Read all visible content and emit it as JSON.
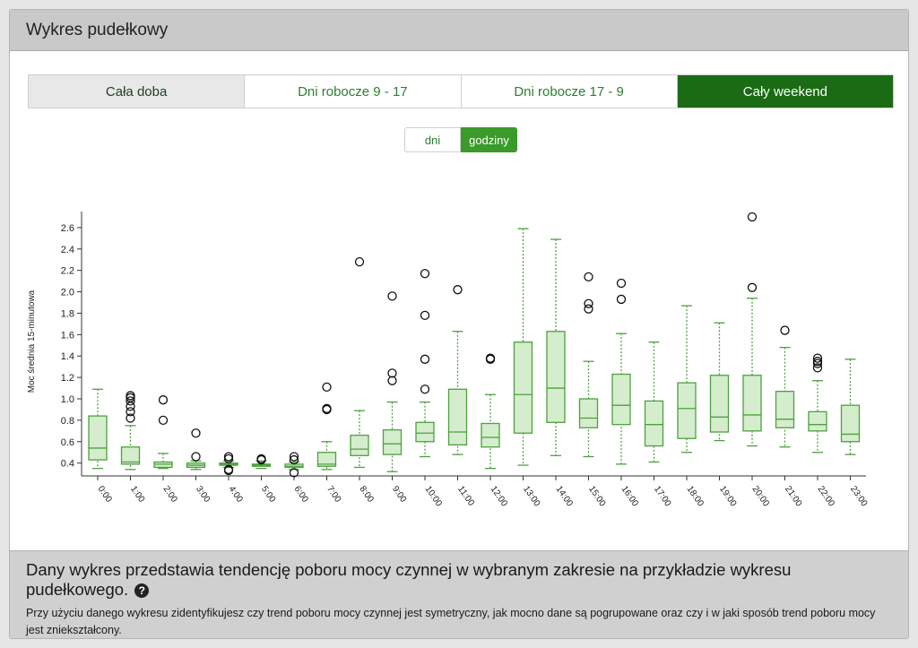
{
  "panel": {
    "title": "Wykres pudełkowy"
  },
  "tabs": [
    {
      "label": "Cała doba"
    },
    {
      "label": "Dni robocze 9 - 17"
    },
    {
      "label": "Dni robocze 17 - 9"
    },
    {
      "label": "Cały weekend",
      "active": true
    }
  ],
  "toggle": {
    "days": "dni",
    "hours": "godziny",
    "selected": "godziny"
  },
  "colors": {
    "accent_dark": "#1a6b14",
    "accent": "#3a9a2a",
    "box_fill": "#d4edcc",
    "box_stroke": "#4ea040"
  },
  "chart_data": {
    "type": "boxplot",
    "ylabel": "Moc średnia 15-minutowa",
    "xlabel": "",
    "ylim": [
      0.28,
      2.75
    ],
    "yticks": [
      0.4,
      0.6,
      0.8,
      1.0,
      1.2,
      1.4,
      1.6,
      1.8,
      2.0,
      2.2,
      2.4,
      2.6
    ],
    "ytick_labels": [
      "0.4",
      "0.6",
      "0.8",
      "1.0",
      "1.2",
      "1.4",
      "1.6",
      "1.8",
      "2.0",
      "2.2",
      "2.4",
      "2.6"
    ],
    "grid": false,
    "categories": [
      "0:00",
      "1:00",
      "2:00",
      "3:00",
      "4:00",
      "5:00",
      "6:00",
      "7:00",
      "8:00",
      "9:00",
      "10:00",
      "11:00",
      "12:00",
      "13:00",
      "14:00",
      "15:00",
      "16:00",
      "17:00",
      "18:00",
      "19:00",
      "20:00",
      "21:00",
      "22:00",
      "23:00"
    ],
    "boxes": [
      {
        "low": 0.35,
        "q1": 0.43,
        "median": 0.54,
        "q3": 0.84,
        "high": 1.09,
        "outliers": []
      },
      {
        "low": 0.34,
        "q1": 0.39,
        "median": 0.41,
        "q3": 0.55,
        "high": 0.75,
        "outliers": [
          0.82,
          0.88,
          0.93,
          0.98,
          1.01,
          1.03
        ]
      },
      {
        "low": 0.35,
        "q1": 0.36,
        "median": 0.39,
        "q3": 0.41,
        "high": 0.49,
        "outliers": [
          0.8,
          0.99
        ]
      },
      {
        "low": 0.34,
        "q1": 0.36,
        "median": 0.38,
        "q3": 0.4,
        "high": 0.42,
        "outliers": [
          0.46,
          0.68
        ]
      },
      {
        "low": 0.36,
        "q1": 0.38,
        "median": 0.39,
        "q3": 0.4,
        "high": 0.42,
        "outliers": [
          0.33,
          0.34,
          0.44,
          0.46
        ]
      },
      {
        "low": 0.35,
        "q1": 0.37,
        "median": 0.38,
        "q3": 0.39,
        "high": 0.42,
        "outliers": [
          0.43,
          0.44
        ]
      },
      {
        "low": 0.34,
        "q1": 0.36,
        "median": 0.37,
        "q3": 0.39,
        "high": 0.41,
        "outliers": [
          0.31,
          0.43,
          0.46
        ]
      },
      {
        "low": 0.34,
        "q1": 0.37,
        "median": 0.39,
        "q3": 0.5,
        "high": 0.6,
        "outliers": [
          0.9,
          0.91,
          1.11
        ]
      },
      {
        "low": 0.36,
        "q1": 0.47,
        "median": 0.53,
        "q3": 0.66,
        "high": 0.89,
        "outliers": [
          2.28
        ]
      },
      {
        "low": 0.32,
        "q1": 0.48,
        "median": 0.58,
        "q3": 0.71,
        "high": 0.97,
        "outliers": [
          1.17,
          1.24,
          1.96
        ]
      },
      {
        "low": 0.46,
        "q1": 0.6,
        "median": 0.68,
        "q3": 0.78,
        "high": 0.97,
        "outliers": [
          1.09,
          1.37,
          1.78,
          2.17
        ]
      },
      {
        "low": 0.48,
        "q1": 0.57,
        "median": 0.69,
        "q3": 1.09,
        "high": 1.63,
        "outliers": [
          2.02
        ]
      },
      {
        "low": 0.35,
        "q1": 0.55,
        "median": 0.64,
        "q3": 0.77,
        "high": 1.04,
        "outliers": [
          1.37,
          1.38
        ]
      },
      {
        "low": 0.38,
        "q1": 0.68,
        "median": 1.04,
        "q3": 1.53,
        "high": 2.59,
        "outliers": []
      },
      {
        "low": 0.47,
        "q1": 0.78,
        "median": 1.1,
        "q3": 1.63,
        "high": 2.49,
        "outliers": []
      },
      {
        "low": 0.46,
        "q1": 0.73,
        "median": 0.82,
        "q3": 1.0,
        "high": 1.35,
        "outliers": [
          1.84,
          1.89,
          2.14
        ]
      },
      {
        "low": 0.39,
        "q1": 0.76,
        "median": 0.94,
        "q3": 1.23,
        "high": 1.61,
        "outliers": [
          1.93,
          2.08
        ]
      },
      {
        "low": 0.41,
        "q1": 0.56,
        "median": 0.76,
        "q3": 0.98,
        "high": 1.53,
        "outliers": []
      },
      {
        "low": 0.5,
        "q1": 0.63,
        "median": 0.91,
        "q3": 1.15,
        "high": 1.87,
        "outliers": []
      },
      {
        "low": 0.61,
        "q1": 0.69,
        "median": 0.83,
        "q3": 1.22,
        "high": 1.71,
        "outliers": []
      },
      {
        "low": 0.56,
        "q1": 0.7,
        "median": 0.85,
        "q3": 1.22,
        "high": 1.94,
        "outliers": [
          2.04,
          2.7
        ]
      },
      {
        "low": 0.55,
        "q1": 0.73,
        "median": 0.81,
        "q3": 1.07,
        "high": 1.48,
        "outliers": [
          1.64
        ]
      },
      {
        "low": 0.5,
        "q1": 0.7,
        "median": 0.76,
        "q3": 0.88,
        "high": 1.17,
        "outliers": [
          1.29,
          1.33,
          1.35,
          1.38
        ]
      },
      {
        "low": 0.48,
        "q1": 0.6,
        "median": 0.67,
        "q3": 0.94,
        "high": 1.37,
        "outliers": []
      }
    ]
  },
  "footer": {
    "heading": "Dany wykres przedstawia tendencję poboru mocy czynnej w wybranym zakresie na przykładzie wykresu pudełkowego.",
    "help_icon": "question-circle-icon",
    "text": "Przy użyciu danego wykresu zidentyfikujesz czy trend poboru mocy czynnej jest symetryczny, jak mocno dane są pogrupowane oraz czy i w jaki sposób trend poboru mocy jest zniekształcony."
  }
}
